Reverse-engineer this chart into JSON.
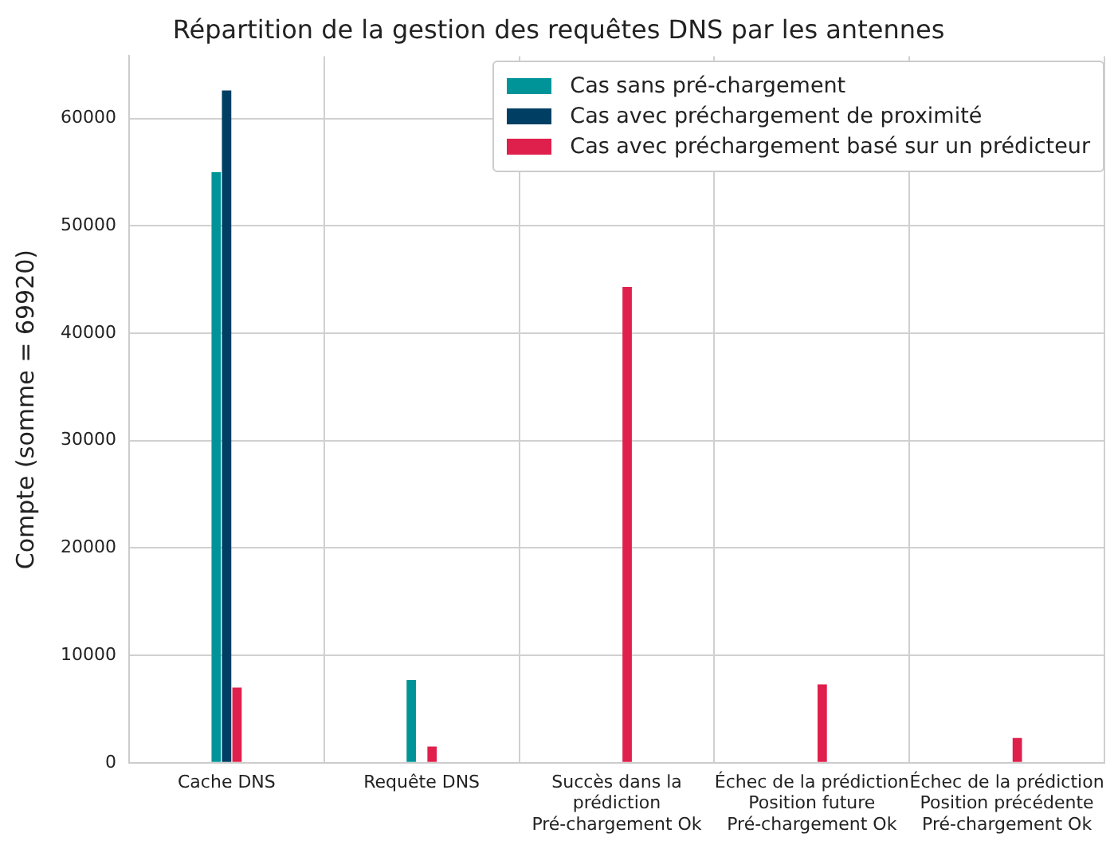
{
  "chart_data": {
    "type": "bar",
    "title": "Répartition de la gestion des requêtes DNS par les antennes",
    "ylabel": "Compte (somme = 69920)",
    "categories": [
      "Cache DNS",
      "Requête DNS",
      "Succès dans la\nprédiction\nPré-chargement Ok",
      "Échec de la prédiction\nPosition future\nPré-chargement Ok",
      "Échec de la prédiction\nPosition précédente\nPré-chargement Ok"
    ],
    "series": [
      {
        "name": "Cas sans pré-chargement",
        "color": "#009499",
        "values": [
          55000,
          7700,
          0,
          0,
          0
        ]
      },
      {
        "name": "Cas avec préchargement de proximité",
        "color": "#003f63",
        "values": [
          62600,
          0,
          0,
          0,
          0
        ]
      },
      {
        "name": "Cas avec préchargement basé sur un prédicteur",
        "color": "#e0204c",
        "values": [
          7000,
          1500,
          44300,
          7300,
          2300
        ]
      }
    ],
    "ylim": [
      0,
      65800
    ],
    "yticks": [
      0,
      10000,
      20000,
      30000,
      40000,
      50000,
      60000
    ],
    "grid": true,
    "legend": "top right"
  }
}
